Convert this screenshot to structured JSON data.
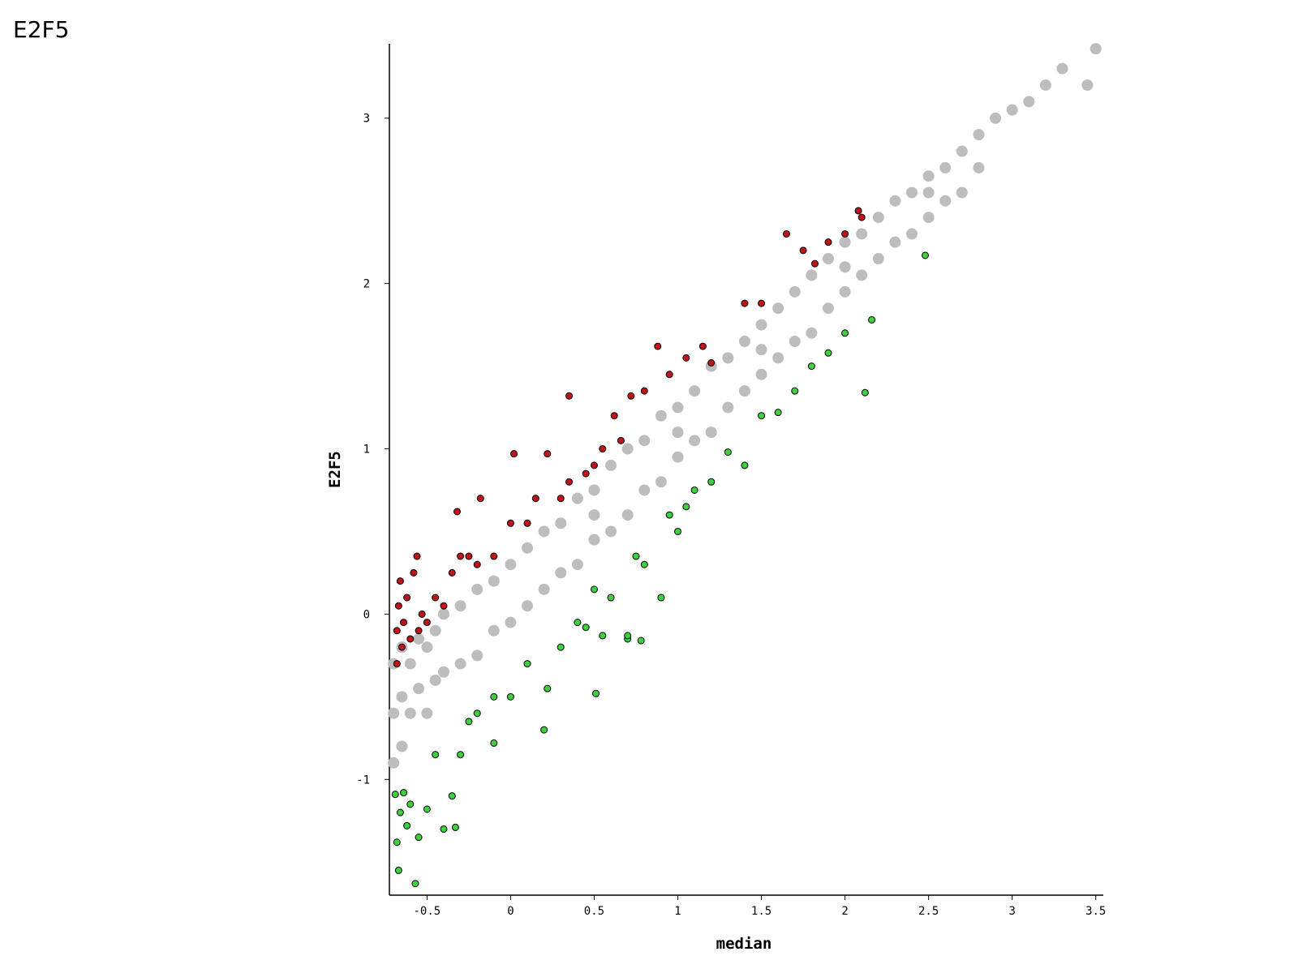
{
  "chart_data": {
    "type": "scatter",
    "title": "E2F5",
    "x_label": "median",
    "y_label": "E2F5",
    "xlim": [
      -0.725,
      3.545
    ],
    "ylim": [
      -1.7,
      3.45
    ],
    "xticks": [
      -0.5,
      0,
      0.5,
      1,
      1.5,
      2,
      2.5,
      3,
      3.5
    ],
    "yticks": [
      -1,
      0,
      1,
      2,
      3
    ],
    "series": [
      {
        "color": "#bdbdbd",
        "outline": false,
        "x": [
          -0.7,
          -0.7,
          -0.7,
          -0.65,
          -0.65,
          -0.65,
          -0.6,
          -0.6,
          -0.55,
          -0.55,
          -0.5,
          -0.5,
          -0.45,
          -0.45,
          -0.4,
          -0.4,
          -0.3,
          -0.3,
          -0.2,
          -0.2,
          -0.1,
          -0.1,
          0,
          0,
          0.1,
          0.1,
          0.2,
          0.2,
          0.3,
          0.3,
          0.4,
          0.4,
          0.5,
          0.5,
          0.6,
          0.6,
          0.7,
          0.7,
          0.8,
          0.8,
          0.9,
          0.9,
          1.0,
          1.0,
          1.1,
          1.1,
          1.2,
          1.2,
          1.3,
          1.3,
          1.4,
          1.4,
          1.5,
          1.5,
          1.6,
          1.6,
          1.7,
          1.7,
          1.8,
          1.8,
          1.9,
          1.9,
          2.0,
          2.0,
          2.1,
          2.1,
          2.2,
          2.2,
          2.3,
          2.3,
          2.4,
          2.4,
          2.5,
          2.5,
          2.6,
          2.6,
          2.7,
          2.7,
          2.8,
          2.8,
          2.9,
          3.0,
          3.1,
          3.2,
          3.3,
          3.45,
          3.5,
          0.5,
          1.0,
          1.5,
          2.0,
          2.5
        ],
        "values": [
          -0.3,
          -0.6,
          -0.9,
          -0.2,
          -0.5,
          -0.8,
          -0.3,
          -0.6,
          -0.15,
          -0.45,
          -0.2,
          -0.6,
          -0.1,
          -0.4,
          0,
          -0.35,
          0.05,
          -0.3,
          0.15,
          -0.25,
          0.2,
          -0.1,
          0.3,
          -0.05,
          0.4,
          0.05,
          0.5,
          0.15,
          0.55,
          0.25,
          0.7,
          0.3,
          0.75,
          0.45,
          0.9,
          0.5,
          1.0,
          0.6,
          1.05,
          0.75,
          1.2,
          0.8,
          1.25,
          0.95,
          1.35,
          1.05,
          1.5,
          1.1,
          1.55,
          1.25,
          1.65,
          1.35,
          1.75,
          1.45,
          1.85,
          1.55,
          1.95,
          1.65,
          2.05,
          1.7,
          2.15,
          1.85,
          2.25,
          1.95,
          2.3,
          2.05,
          2.4,
          2.15,
          2.5,
          2.25,
          2.55,
          2.3,
          2.65,
          2.4,
          2.7,
          2.5,
          2.8,
          2.55,
          2.9,
          2.7,
          3.0,
          3.05,
          3.1,
          3.2,
          3.3,
          3.2,
          3.42,
          0.6,
          1.1,
          1.6,
          2.1,
          2.55
        ]
      },
      {
        "color": "#c0141a",
        "outline": true,
        "x": [
          -0.68,
          -0.68,
          -0.67,
          -0.66,
          -0.65,
          -0.64,
          -0.62,
          -0.6,
          -0.58,
          -0.56,
          -0.55,
          -0.53,
          -0.5,
          -0.45,
          -0.4,
          -0.35,
          -0.3,
          -0.25,
          -0.2,
          -0.18,
          -0.1,
          0.0,
          0.02,
          0.1,
          0.15,
          0.22,
          0.3,
          0.35,
          0.35,
          0.45,
          0.5,
          0.55,
          0.62,
          0.66,
          0.72,
          0.8,
          0.88,
          0.95,
          1.05,
          1.15,
          1.2,
          1.4,
          1.5,
          1.65,
          1.75,
          1.82,
          1.9,
          2.0,
          2.08,
          2.1,
          -0.32
        ],
        "values": [
          -0.3,
          -0.1,
          0.05,
          0.2,
          -0.2,
          -0.05,
          0.1,
          -0.15,
          0.25,
          0.35,
          -0.1,
          0,
          -0.05,
          0.1,
          0.05,
          0.25,
          0.35,
          0.35,
          0.3,
          0.7,
          0.35,
          0.55,
          0.97,
          0.55,
          0.7,
          0.97,
          0.7,
          1.32,
          0.8,
          0.85,
          0.9,
          1.0,
          1.2,
          1.05,
          1.32,
          1.35,
          1.62,
          1.45,
          1.55,
          1.62,
          1.52,
          1.88,
          1.88,
          2.3,
          2.2,
          2.12,
          2.25,
          2.3,
          2.44,
          2.4,
          0.62
        ]
      },
      {
        "color": "#3cd23c",
        "outline": true,
        "x": [
          -0.69,
          -0.68,
          -0.67,
          -0.66,
          -0.64,
          -0.62,
          -0.6,
          -0.57,
          -0.55,
          -0.5,
          -0.45,
          -0.4,
          -0.35,
          -0.33,
          -0.3,
          -0.25,
          -0.2,
          -0.1,
          -0.1,
          0.0,
          0.1,
          0.2,
          0.22,
          0.3,
          0.4,
          0.45,
          0.5,
          0.51,
          0.55,
          0.6,
          0.7,
          0.75,
          0.8,
          0.9,
          0.95,
          1.0,
          1.05,
          1.1,
          1.2,
          1.3,
          1.4,
          1.5,
          1.6,
          1.7,
          1.8,
          1.9,
          2.0,
          2.12,
          2.16,
          2.48,
          0.7,
          0.78
        ],
        "values": [
          -1.09,
          -1.38,
          -1.55,
          -1.2,
          -1.08,
          -1.28,
          -1.15,
          -1.63,
          -1.35,
          -1.18,
          -0.85,
          -1.3,
          -1.1,
          -1.29,
          -0.85,
          -0.65,
          -0.6,
          -0.78,
          -0.5,
          -0.5,
          -0.3,
          -0.7,
          -0.45,
          -0.2,
          -0.05,
          -0.08,
          0.15,
          -0.48,
          -0.13,
          0.1,
          -0.15,
          0.35,
          0.3,
          0.1,
          0.6,
          0.5,
          0.65,
          0.75,
          0.8,
          0.98,
          0.9,
          1.2,
          1.22,
          1.35,
          1.5,
          1.58,
          1.7,
          1.34,
          1.78,
          2.17,
          -0.13,
          -0.16
        ]
      }
    ]
  }
}
